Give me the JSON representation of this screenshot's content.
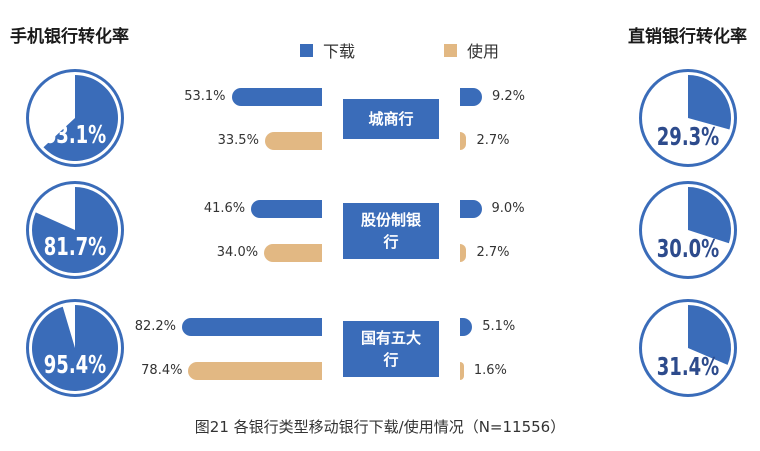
{
  "chart_data": {
    "type": "bar",
    "title": "",
    "caption": "图21 各银行类型移动银行下载/使用情况（N=11556）",
    "left_header": "手机银行转化率",
    "right_header": "直销银行转化率",
    "legend": [
      {
        "name": "下载",
        "color": "#3a6cb9"
      },
      {
        "name": "使用",
        "color": "#e2b883"
      }
    ],
    "categories": [
      {
        "label": "城商行",
        "mobile_conversion": 63.1,
        "mobile_label": "63.1%",
        "direct_conversion": 29.3,
        "direct_label": "29.3%",
        "mobile_download": 53.1,
        "mobile_download_label": "53.1%",
        "mobile_use": 33.5,
        "mobile_use_label": "33.5%",
        "direct_download": 9.2,
        "direct_download_label": "9.2%",
        "direct_use": 2.7,
        "direct_use_label": "2.7%"
      },
      {
        "label": "股份制银行",
        "mobile_conversion": 81.7,
        "mobile_label": "81.7%",
        "direct_conversion": 30.0,
        "direct_label": "30.0%",
        "mobile_download": 41.6,
        "mobile_download_label": "41.6%",
        "mobile_use": 34.0,
        "mobile_use_label": "34.0%",
        "direct_download": 9.0,
        "direct_download_label": "9.0%",
        "direct_use": 2.7,
        "direct_use_label": "2.7%"
      },
      {
        "label": "国有五大行",
        "mobile_conversion": 95.4,
        "mobile_label": "95.4%",
        "direct_conversion": 31.4,
        "direct_label": "31.4%",
        "mobile_download": 82.2,
        "mobile_download_label": "82.2%",
        "mobile_use": 78.4,
        "mobile_use_label": "78.4%",
        "direct_download": 5.1,
        "direct_download_label": "5.1%",
        "direct_use": 1.6,
        "direct_use_label": "1.6%"
      }
    ],
    "colors": {
      "download": "#3a6cb9",
      "use": "#e2b883",
      "pie_fill": "#3a6cb9",
      "pie_ring": "#3a6cb9"
    }
  }
}
